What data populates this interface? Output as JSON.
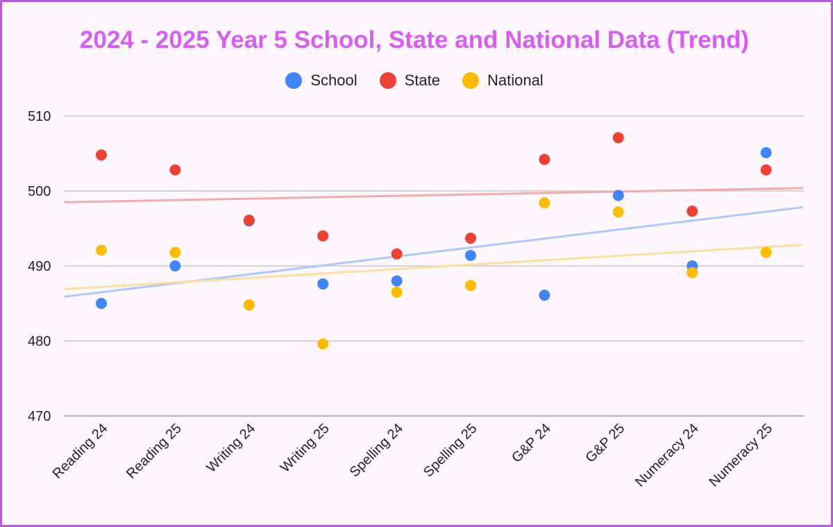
{
  "chart_data": {
    "type": "scatter",
    "title": "2024 - 2025 Year 5 School, State and National Data (Trend)",
    "categories": [
      "Reading 24",
      "Reading 25",
      "Writing 24",
      "Writing 25",
      "Spelling 24",
      "Spelling 25",
      "G&P 24",
      "G&P 25",
      "Numeracy 24",
      "Numeracy 25"
    ],
    "ylim": [
      470,
      510
    ],
    "yticks": [
      "470",
      "480",
      "490",
      "500",
      "510"
    ],
    "grid": true,
    "legend_position": "top",
    "trendlines": true,
    "series": [
      {
        "name": "School",
        "color": "#4285f4",
        "trend_color": "#aec8f7",
        "values": [
          485.0,
          490.0,
          496.0,
          487.6,
          488.0,
          491.4,
          486.1,
          499.4,
          490.0,
          505.1
        ]
      },
      {
        "name": "State",
        "color": "#ea4335",
        "trend_color": "#f2abab",
        "values": [
          504.8,
          502.8,
          496.1,
          494.0,
          491.6,
          493.7,
          504.2,
          507.1,
          497.3,
          502.8
        ]
      },
      {
        "name": "National",
        "color": "#fbbc04",
        "trend_color": "#f9dfa0",
        "values": [
          492.1,
          491.8,
          484.8,
          479.6,
          486.5,
          487.4,
          498.4,
          497.2,
          489.1,
          491.8
        ]
      }
    ]
  }
}
